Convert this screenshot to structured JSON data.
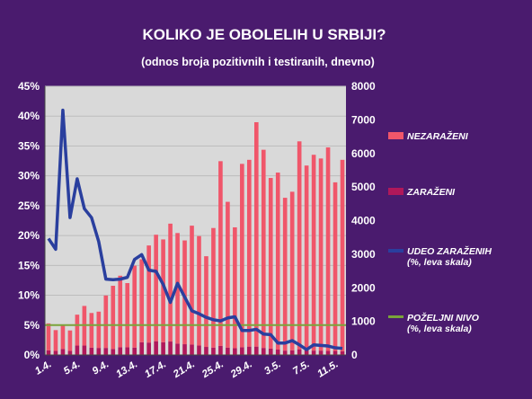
{
  "chart_data": {
    "type": "bar",
    "title": "KOLIKO JE OBOLELIH U SRBIJI?",
    "subtitle": "(odnos broja pozitivnih i testiranih, dnevno)",
    "grid": true,
    "legend_position": "right",
    "y_left": {
      "ylim": [
        0,
        45
      ],
      "ticks": [
        "0%",
        "5%",
        "10%",
        "15%",
        "20%",
        "25%",
        "30%",
        "35%",
        "40%",
        "45%"
      ]
    },
    "y_right": {
      "ylim": [
        0,
        8000
      ],
      "ticks": [
        "0",
        "1000",
        "2000",
        "3000",
        "4000",
        "5000",
        "6000",
        "7000",
        "8000"
      ]
    },
    "x_tick_labels": [
      {
        "index": 0,
        "label": "1.4."
      },
      {
        "index": 4,
        "label": "5.4."
      },
      {
        "index": 8,
        "label": "9.4."
      },
      {
        "index": 12,
        "label": "13.4."
      },
      {
        "index": 16,
        "label": "17.4."
      },
      {
        "index": 20,
        "label": "21.4."
      },
      {
        "index": 24,
        "label": "25.4."
      },
      {
        "index": 28,
        "label": "29.4."
      },
      {
        "index": 32,
        "label": "3.5."
      },
      {
        "index": 36,
        "label": "7.5."
      },
      {
        "index": 40,
        "label": "11.5."
      }
    ],
    "series": [
      {
        "name": "NEZARAŽENI",
        "axis": "right",
        "kind": "bar",
        "color": "#f0566a",
        "values": [
          800,
          620,
          700,
          610,
          920,
          1180,
          1030,
          1080,
          1560,
          1880,
          2130,
          1910,
          2440,
          2470,
          2890,
          3170,
          3060,
          3510,
          3290,
          3090,
          3540,
          3260,
          2700,
          3560,
          5500,
          4340,
          3600,
          5460,
          5560,
          6680,
          5900,
          5080,
          5270,
          4550,
          4720,
          6190,
          5500,
          5830,
          5720,
          6060,
          5020,
          5700
        ],
        "values_note": ""
      },
      {
        "name": "ZARAŽENI",
        "axis": "right",
        "kind": "bar",
        "color": "#b0185a",
        "values": [
          140,
          120,
          180,
          120,
          280,
          280,
          220,
          210,
          210,
          180,
          230,
          230,
          220,
          380,
          370,
          410,
          380,
          400,
          340,
          320,
          310,
          280,
          240,
          220,
          270,
          220,
          200,
          230,
          250,
          250,
          210,
          190,
          160,
          130,
          140,
          170,
          140,
          130,
          130,
          120,
          120,
          110
        ]
      },
      {
        "name": "UDEO ZARAŽENIH\n(%, leva skala)",
        "axis": "left",
        "kind": "line",
        "color": "#2a3f9e",
        "values": [
          19.5,
          17.7,
          41.0,
          23.0,
          29.5,
          24.5,
          23.0,
          19.0,
          12.7,
          12.6,
          12.7,
          13.0,
          16.0,
          16.8,
          14.2,
          14.0,
          11.8,
          8.8,
          12.0,
          9.7,
          7.4,
          6.9,
          6.3,
          5.9,
          5.7,
          6.2,
          6.4,
          4.1,
          4.1,
          4.3,
          3.5,
          3.4,
          2.0,
          2.0,
          2.4,
          1.7,
          0.9,
          1.7,
          1.6,
          1.5,
          1.2,
          1.1
        ]
      },
      {
        "name": "POŽELJNI NIVO\n(%, leva skala)",
        "axis": "left",
        "kind": "line",
        "color": "#7aa43a",
        "values": [
          5,
          5,
          5,
          5,
          5,
          5,
          5,
          5,
          5,
          5,
          5,
          5,
          5,
          5,
          5,
          5,
          5,
          5,
          5,
          5,
          5,
          5,
          5,
          5,
          5,
          5,
          5,
          5,
          5,
          5,
          5,
          5,
          5,
          5,
          5,
          5,
          5,
          5,
          5,
          5,
          5,
          5
        ]
      }
    ]
  }
}
